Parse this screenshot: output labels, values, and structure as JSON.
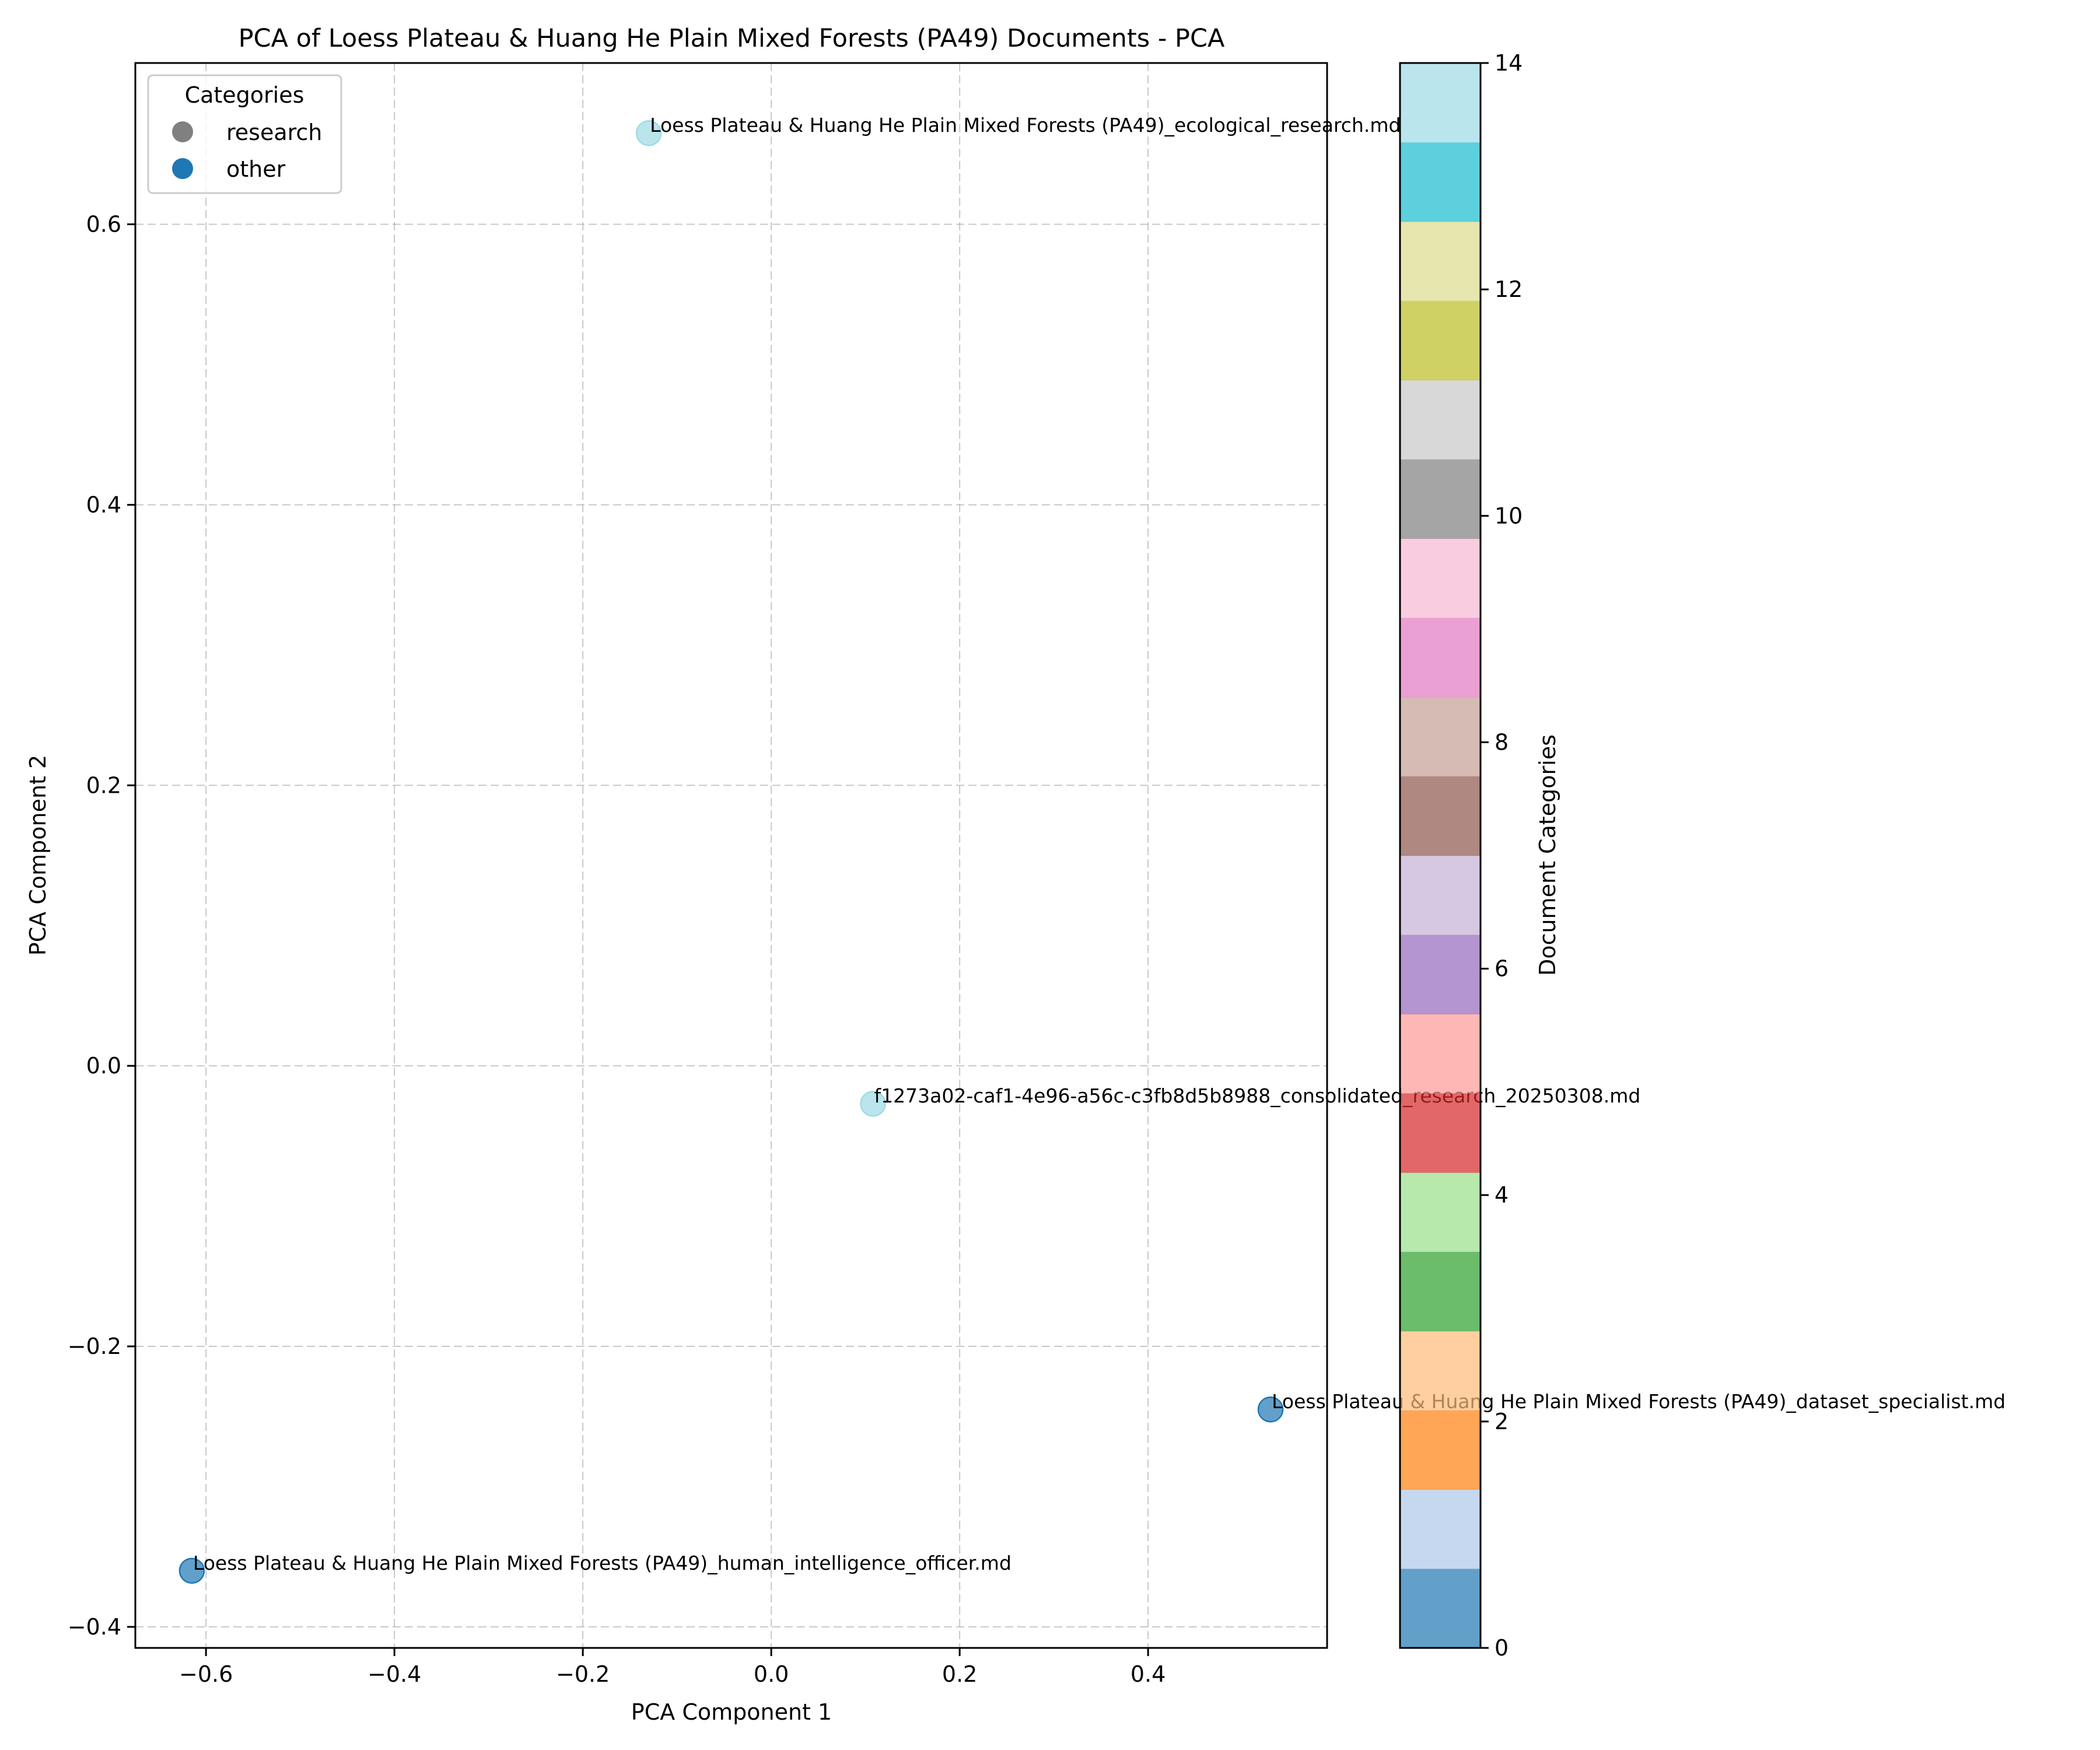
{
  "chart_data": {
    "type": "scatter",
    "title": "PCA of Loess Plateau & Huang He Plain Mixed Forests (PA49) Documents - PCA",
    "xlabel": "PCA Component 1",
    "ylabel": "PCA Component 2",
    "xlim": [
      -0.675,
      0.59
    ],
    "ylim": [
      -0.415,
      0.715
    ],
    "xticks": [
      -0.6,
      -0.4,
      -0.2,
      0.0,
      0.2,
      0.4
    ],
    "xtick_labels": [
      "−0.6",
      "−0.4",
      "−0.2",
      "0.0",
      "0.2",
      "0.4"
    ],
    "yticks": [
      -0.4,
      -0.2,
      0.0,
      0.2,
      0.4,
      0.6
    ],
    "ytick_labels": [
      "−0.4",
      "−0.2",
      "0.0",
      "0.2",
      "0.4",
      "0.6"
    ],
    "grid": true,
    "legend": {
      "title": "Categories",
      "placement": "top-left",
      "entries": [
        {
          "label": "research",
          "color": "#808080"
        },
        {
          "label": "other",
          "color": "#1f77b4"
        }
      ]
    },
    "points": [
      {
        "x": -0.13,
        "y": 0.665,
        "category": 14,
        "label": "Loess Plateau & Huang He Plain Mixed Forests (PA49)_ecological_research.md"
      },
      {
        "x": 0.108,
        "y": -0.027,
        "category": 14,
        "label": "f1273a02-caf1-4e96-a56c-c3fb8d5b8988_consolidated_research_20250308.md"
      },
      {
        "x": 0.53,
        "y": -0.245,
        "category": 0,
        "label": "Loess Plateau & Huang He Plain Mixed Forests (PA49)_dataset_specialist.md"
      },
      {
        "x": -0.615,
        "y": -0.36,
        "category": 0,
        "label": "Loess Plateau & Huang He Plain Mixed Forests (PA49)_human_intelligence_officer.md"
      }
    ],
    "colorbar": {
      "label": "Document Categories",
      "min": 0,
      "max": 14,
      "ticks": [
        0,
        2,
        4,
        6,
        8,
        10,
        12,
        14
      ],
      "colors": [
        "#1f77b4",
        "#aec7e8",
        "#ff7f0e",
        "#ffbb78",
        "#2ca02c",
        "#98df8a",
        "#d62728",
        "#ff9896",
        "#9467bd",
        "#c5b0d5",
        "#8c564b",
        "#c49c94",
        "#e377c2",
        "#f7b6d2",
        "#7f7f7f",
        "#c7c7c7",
        "#bcbd22",
        "#dbdb8d",
        "#17becf",
        "#9edae5"
      ]
    }
  }
}
